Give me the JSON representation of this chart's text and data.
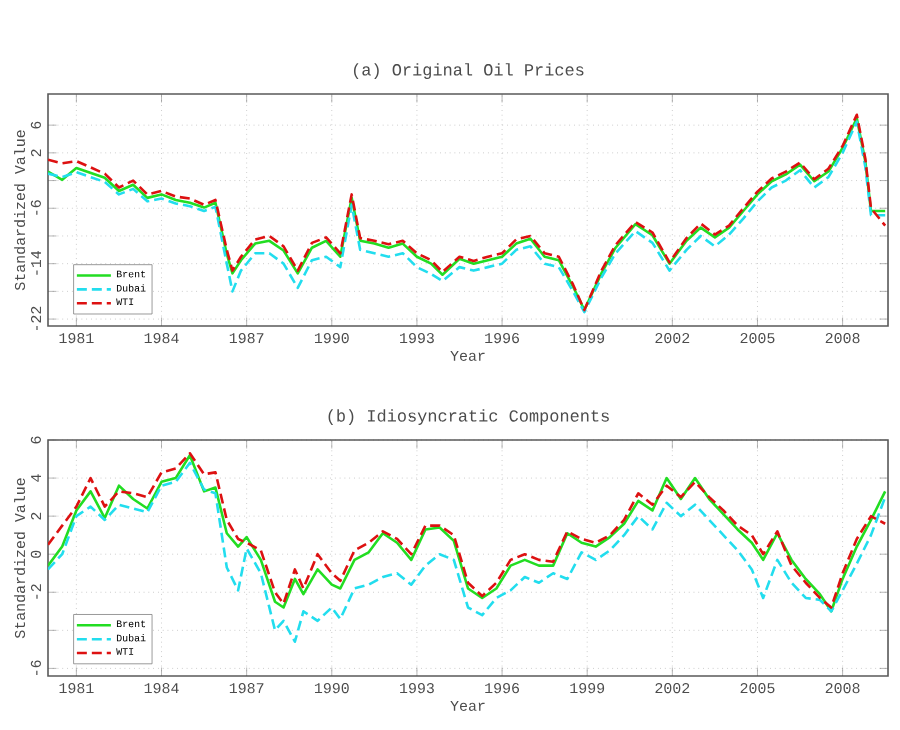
{
  "chart_data": [
    {
      "type": "line",
      "title": "(a) Original Oil Prices",
      "xlabel": "Year",
      "ylabel": "Standardized Value",
      "x": [
        1980,
        1980.5,
        1981,
        1982,
        1982.5,
        1983,
        1983.5,
        1984,
        1984.5,
        1985,
        1985.5,
        1985.9,
        1986.3,
        1986.5,
        1986.8,
        1987.3,
        1987.8,
        1988.3,
        1988.8,
        1989.3,
        1989.8,
        1990.3,
        1990.7,
        1991,
        1991.5,
        1992,
        1992.5,
        1993,
        1993.5,
        1993.9,
        1994.5,
        1995,
        1995.5,
        1996,
        1996.5,
        1997,
        1997.5,
        1998,
        1998.5,
        1998.9,
        1999.5,
        2000,
        2000.7,
        2001.3,
        2001.9,
        2002.5,
        2003,
        2003.5,
        2004,
        2004.5,
        2005,
        2005.5,
        2006,
        2006.5,
        2007,
        2007.5,
        2008,
        2008.5,
        2008.8,
        2009,
        2009.5
      ],
      "series": [
        {
          "name": "Brent",
          "color": "#22dd22",
          "line_style": "solid",
          "values": [
            -0.7,
            -1.9,
            -0.2,
            -1.6,
            -3.5,
            -2.6,
            -4.5,
            -4,
            -4.8,
            -5.2,
            -5.9,
            -5.2,
            -12.6,
            -15.4,
            -13.5,
            -11.1,
            -10.7,
            -12.1,
            -15.4,
            -11.7,
            -10.7,
            -13,
            -4.5,
            -10.7,
            -11.1,
            -11.7,
            -11.1,
            -13,
            -14,
            -15.6,
            -13.3,
            -14,
            -13.5,
            -13,
            -11.1,
            -10.4,
            -13,
            -13.5,
            -17.3,
            -20.7,
            -15.4,
            -11.7,
            -8.3,
            -9.9,
            -14,
            -10.7,
            -8.8,
            -10.2,
            -8.8,
            -6.4,
            -4,
            -2.1,
            -1.1,
            0.3,
            -2.1,
            -0.7,
            2.7,
            7,
            0.8,
            -6.4,
            -6.4
          ]
        },
        {
          "name": "Dubai",
          "color": "#22ddee",
          "line_style": "dashed",
          "values": [
            -1,
            -1.5,
            -0.8,
            -2.2,
            -4,
            -3.2,
            -5,
            -4.6,
            -5.3,
            -5.7,
            -6.4,
            -5.8,
            -14,
            -18,
            -15,
            -12.5,
            -12.5,
            -14,
            -17.5,
            -13.5,
            -13,
            -14.5,
            -5.5,
            -12,
            -12.5,
            -13,
            -12.5,
            -14.5,
            -15.5,
            -16.5,
            -14.5,
            -15,
            -14.5,
            -14,
            -12,
            -11.5,
            -14,
            -14.5,
            -18,
            -21,
            -16,
            -12.5,
            -9.3,
            -11,
            -15,
            -12,
            -10,
            -11.5,
            -9.8,
            -7.5,
            -5,
            -3,
            -2,
            -0.5,
            -3,
            -1.5,
            2,
            6.5,
            0,
            -7,
            -7
          ]
        },
        {
          "name": "WTI",
          "color": "#dd1111",
          "line_style": "dashed",
          "values": [
            1,
            0.5,
            0.8,
            -1,
            -3,
            -2,
            -4,
            -3.5,
            -4.3,
            -4.6,
            -5.5,
            -4.8,
            -12,
            -15,
            -13,
            -10.5,
            -10,
            -11.5,
            -15,
            -11,
            -10.2,
            -12.5,
            -4,
            -10.3,
            -10.7,
            -11.2,
            -10.7,
            -12.5,
            -13.5,
            -15.2,
            -13,
            -13.6,
            -13,
            -12.5,
            -10.5,
            -10,
            -12.5,
            -13,
            -17,
            -20.7,
            -15,
            -11.3,
            -8,
            -9.5,
            -13.8,
            -10.3,
            -8.2,
            -9.8,
            -8.5,
            -6,
            -3.6,
            -1.7,
            -0.7,
            0.6,
            -1.8,
            -0.3,
            3,
            7.5,
            1.2,
            -6,
            -8.5
          ]
        }
      ],
      "xlim": [
        1980,
        2009.6
      ],
      "ylim": [
        -23,
        10.5
      ],
      "xticks": [
        1981,
        1984,
        1987,
        1990,
        1993,
        1996,
        1999,
        2002,
        2005,
        2008
      ],
      "yticks": [
        -22,
        {
          "value": -18,
          "label": null
        },
        -14,
        {
          "value": -10,
          "label": null
        },
        -6,
        {
          "value": -2,
          "label": null
        },
        2,
        6
      ],
      "grid": true,
      "legend": "bottom left"
    },
    {
      "type": "line",
      "title": "(b) Idiosyncratic Components",
      "xlabel": "Year",
      "ylabel": "Standardized Value",
      "x": [
        1980,
        1980.5,
        1981,
        1981.5,
        1982,
        1982.5,
        1983,
        1983.5,
        1984,
        1984.5,
        1985,
        1985.5,
        1985.9,
        1986.3,
        1986.7,
        1987,
        1987.5,
        1988,
        1988.3,
        1988.7,
        1989,
        1989.5,
        1990,
        1990.3,
        1990.8,
        1991.3,
        1991.8,
        1992.3,
        1992.8,
        1993.3,
        1993.8,
        1994.3,
        1994.8,
        1995.3,
        1995.8,
        1996.3,
        1996.8,
        1997.3,
        1997.8,
        1998.3,
        1998.8,
        1999.3,
        1999.8,
        2000.3,
        2000.8,
        2001.3,
        2001.8,
        2002.3,
        2002.8,
        2003.3,
        2003.8,
        2004.3,
        2004.8,
        2005.2,
        2005.7,
        2006.2,
        2006.7,
        2007.2,
        2007.6,
        2008,
        2008.5,
        2009,
        2009.5
      ],
      "series": [
        {
          "name": "Brent",
          "color": "#22dd22",
          "line_style": "solid",
          "values": [
            -0.6,
            0.4,
            2.3,
            3.3,
            1.9,
            3.6,
            2.9,
            2.4,
            3.8,
            4,
            5.2,
            3.3,
            3.5,
            1.1,
            0.4,
            0.9,
            -0.3,
            -2.5,
            -2.8,
            -1.3,
            -2.1,
            -0.8,
            -1.6,
            -1.8,
            -0.3,
            0.1,
            1.1,
            0.6,
            -0.3,
            1.3,
            1.4,
            0.7,
            -1.8,
            -2.3,
            -1.8,
            -0.6,
            -0.3,
            -0.6,
            -0.6,
            1.1,
            0.6,
            0.4,
            0.9,
            1.6,
            2.8,
            2.3,
            4,
            2.9,
            4,
            2.9,
            2.1,
            1.3,
            0.6,
            -0.3,
            1.1,
            -0.3,
            -1.3,
            -2.1,
            -3,
            -1.3,
            0.4,
            1.8,
            3.3
          ]
        },
        {
          "name": "Dubai",
          "color": "#22ddee",
          "line_style": "dashed",
          "values": [
            -0.8,
            0,
            2,
            2.5,
            1.8,
            2.6,
            2.4,
            2.2,
            3.6,
            3.8,
            4.8,
            3.4,
            3.2,
            -0.7,
            -1.9,
            0.3,
            -1,
            -4,
            -3.5,
            -4.6,
            -3,
            -3.5,
            -2.8,
            -3.4,
            -1.8,
            -1.6,
            -1.2,
            -1,
            -1.6,
            -0.6,
            0,
            -0.3,
            -2.8,
            -3.2,
            -2.3,
            -1.9,
            -1.2,
            -1.5,
            -1,
            -1.3,
            0.1,
            -0.3,
            0.2,
            1,
            2,
            1.3,
            2.7,
            2,
            2.6,
            1.8,
            1,
            0.2,
            -0.8,
            -2.3,
            -0.3,
            -1.5,
            -2.3,
            -2.4,
            -3,
            -1.9,
            -0.5,
            1,
            3
          ]
        },
        {
          "name": "WTI",
          "color": "#dd1111",
          "line_style": "dashed",
          "values": [
            0.5,
            1.5,
            2.5,
            4,
            2.5,
            3.3,
            3.2,
            3,
            4.3,
            4.5,
            5.3,
            4.2,
            4.3,
            1.8,
            0.8,
            0.6,
            0.2,
            -2,
            -2.6,
            -0.8,
            -1.8,
            0,
            -1,
            -1.4,
            0.2,
            0.6,
            1.2,
            0.8,
            0,
            1.5,
            1.5,
            1,
            -1.5,
            -2.2,
            -1.5,
            -0.3,
            0,
            -0.3,
            -0.4,
            1.2,
            0.8,
            0.6,
            1,
            1.8,
            3.2,
            2.6,
            3.6,
            3,
            3.8,
            3,
            2.3,
            1.5,
            1,
            0,
            1.2,
            -0.6,
            -1.5,
            -2.3,
            -2.8,
            -1,
            0.8,
            2,
            1.6
          ]
        }
      ],
      "xlim": [
        1980,
        2009.6
      ],
      "ylim": [
        -6.4,
        6
      ],
      "xticks": [
        1981,
        1984,
        1987,
        1990,
        1993,
        1996,
        1999,
        2002,
        2005,
        2008
      ],
      "yticks": [
        -6,
        {
          "value": -4,
          "label": null
        },
        -2,
        0,
        2,
        4,
        6
      ],
      "grid": true,
      "legend": "bottom left"
    }
  ]
}
